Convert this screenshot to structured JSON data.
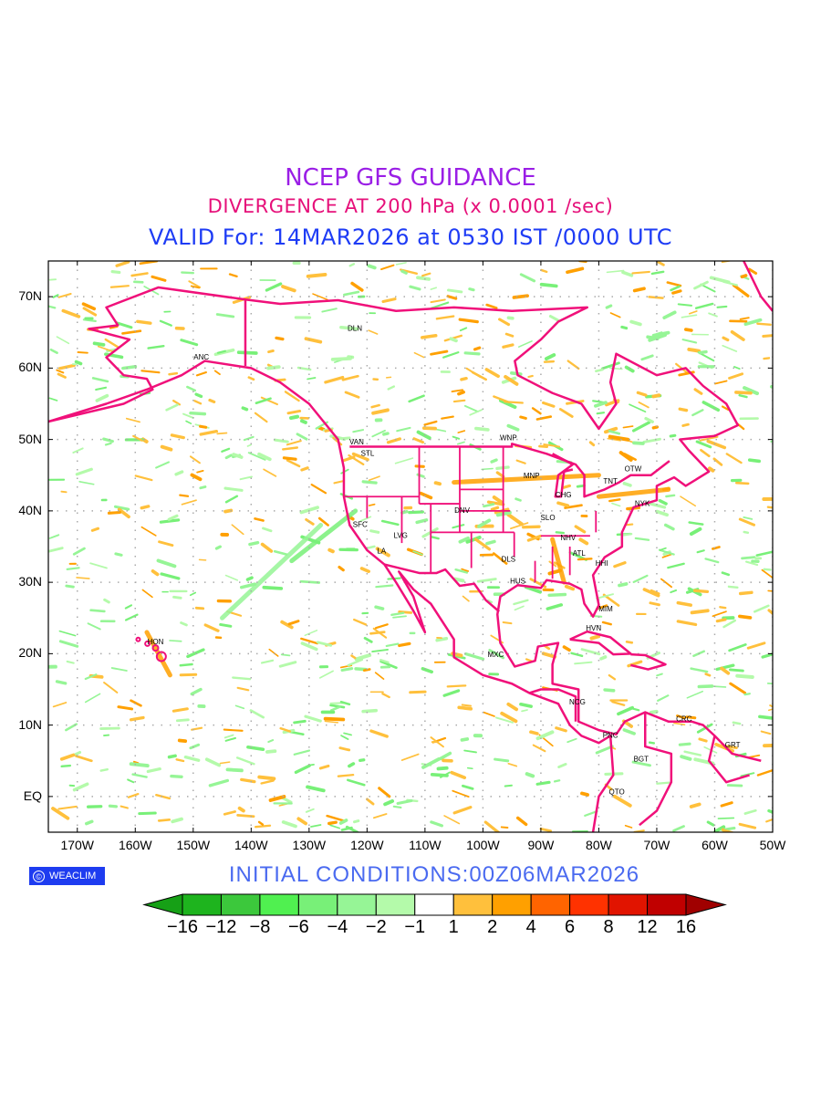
{
  "header": {
    "title": "NCEP GFS GUIDANCE",
    "subtitle": "DIVERGENCE AT 200 hPa (x 0.0001 /sec)",
    "valid": "VALID For: 14MAR2026 at 0530 IST /0000 UTC"
  },
  "colors": {
    "title": "#9a1ee6",
    "subtitle": "#e6107a",
    "valid": "#1e3cf5",
    "coastline": "#f0107a",
    "grid": "#aaaaaa"
  },
  "map": {
    "lon_range": [
      -175,
      -50
    ],
    "lat_range": [
      -5,
      75
    ],
    "lon_ticks": [
      {
        "lon": -170,
        "label": "170W"
      },
      {
        "lon": -160,
        "label": "160W"
      },
      {
        "lon": -150,
        "label": "150W"
      },
      {
        "lon": -140,
        "label": "140W"
      },
      {
        "lon": -130,
        "label": "130W"
      },
      {
        "lon": -120,
        "label": "120W"
      },
      {
        "lon": -110,
        "label": "110W"
      },
      {
        "lon": -100,
        "label": "100W"
      },
      {
        "lon": -90,
        "label": "90W"
      },
      {
        "lon": -80,
        "label": "80W"
      },
      {
        "lon": -70,
        "label": "70W"
      },
      {
        "lon": -60,
        "label": "60W"
      },
      {
        "lon": -50,
        "label": "50W"
      }
    ],
    "lat_ticks": [
      {
        "lat": 70,
        "label": "70N"
      },
      {
        "lat": 60,
        "label": "60N"
      },
      {
        "lat": 50,
        "label": "50N"
      },
      {
        "lat": 40,
        "label": "40N"
      },
      {
        "lat": 30,
        "label": "30N"
      },
      {
        "lat": 20,
        "label": "20N"
      },
      {
        "lat": 10,
        "label": "10N"
      },
      {
        "lat": 0,
        "label": "EQ"
      }
    ],
    "cities": [
      {
        "code": "ANC",
        "lon": -148.6,
        "lat": 61.6
      },
      {
        "code": "DLN",
        "lon": -122.1,
        "lat": 65.6
      },
      {
        "code": "VAN",
        "lon": -121.8,
        "lat": 49.7
      },
      {
        "code": "STL",
        "lon": -119.9,
        "lat": 48.1
      },
      {
        "code": "WNP",
        "lon": -95.6,
        "lat": 50.3
      },
      {
        "code": "MNP",
        "lon": -91.6,
        "lat": 45.0
      },
      {
        "code": "OTW",
        "lon": -74.1,
        "lat": 45.9
      },
      {
        "code": "TNT",
        "lon": -78.0,
        "lat": 44.2
      },
      {
        "code": "CHG",
        "lon": -86.1,
        "lat": 42.3
      },
      {
        "code": "NYK",
        "lon": -72.5,
        "lat": 41.1
      },
      {
        "code": "DNV",
        "lon": -103.6,
        "lat": 40.1
      },
      {
        "code": "SFC",
        "lon": -121.2,
        "lat": 38.1
      },
      {
        "code": "SLO",
        "lon": -88.8,
        "lat": 39.1
      },
      {
        "code": "LVG",
        "lon": -114.2,
        "lat": 36.6
      },
      {
        "code": "NHV",
        "lon": -85.3,
        "lat": 36.3
      },
      {
        "code": "LA",
        "lon": -117.5,
        "lat": 34.4
      },
      {
        "code": "ATL",
        "lon": -83.4,
        "lat": 34.1
      },
      {
        "code": "DLS",
        "lon": -95.6,
        "lat": 33.3
      },
      {
        "code": "HHI",
        "lon": -79.5,
        "lat": 32.7
      },
      {
        "code": "HUS",
        "lon": -94.0,
        "lat": 30.2
      },
      {
        "code": "MIM",
        "lon": -78.8,
        "lat": 26.3
      },
      {
        "code": "HVN",
        "lon": -80.9,
        "lat": 23.6
      },
      {
        "code": "HON",
        "lon": -156.5,
        "lat": 21.7
      },
      {
        "code": "MXC",
        "lon": -97.8,
        "lat": 19.9
      },
      {
        "code": "NCG",
        "lon": -83.7,
        "lat": 13.3
      },
      {
        "code": "CRC",
        "lon": -65.3,
        "lat": 10.9
      },
      {
        "code": "PNC",
        "lon": -78.0,
        "lat": 8.6
      },
      {
        "code": "GRT",
        "lon": -56.9,
        "lat": 7.3
      },
      {
        "code": "BGT",
        "lon": -72.7,
        "lat": 5.3
      },
      {
        "code": "QTO",
        "lon": -76.9,
        "lat": 0.7
      }
    ]
  },
  "footer": {
    "logo": "WEACLIM",
    "logo_symbol": "©",
    "initial_conditions": "INITIAL  CONDITIONS:00Z06MAR2026"
  },
  "colorbar": {
    "labels": [
      "−16",
      "−12",
      "−8",
      "−6",
      "−4",
      "−2",
      "−1",
      "1",
      "2",
      "4",
      "6",
      "8",
      "12",
      "16"
    ],
    "low_extend_color": "#16a016",
    "high_extend_color": "#a00000",
    "colors": [
      "#1eb41e",
      "#3cc83c",
      "#50f050",
      "#78f078",
      "#96f596",
      "#b4faaa",
      "#ffffff",
      "#ffc03c",
      "#ffa000",
      "#ff6400",
      "#ff3200",
      "#e11400",
      "#c00000"
    ]
  }
}
